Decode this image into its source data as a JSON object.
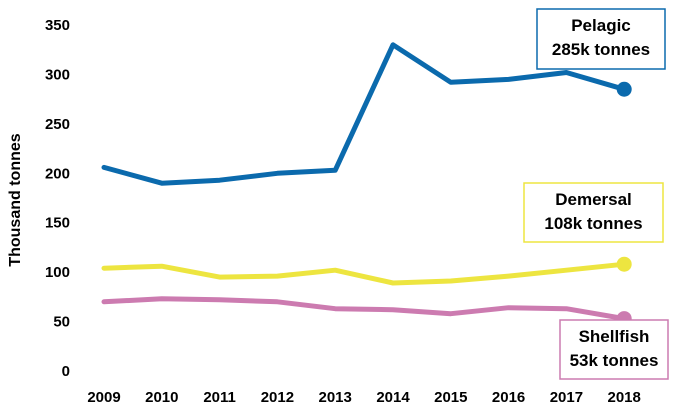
{
  "chart_data": {
    "type": "line",
    "title": "",
    "xlabel": "",
    "ylabel": "Thousand tonnes",
    "ylim": [
      0,
      350
    ],
    "yticks": [
      0,
      50,
      100,
      150,
      200,
      250,
      300,
      350
    ],
    "grid": false,
    "categories": [
      "2009",
      "2010",
      "2011",
      "2012",
      "2013",
      "2014",
      "2015",
      "2016",
      "2017",
      "2018"
    ],
    "series": [
      {
        "name": "Pelagic",
        "color": "#0b6aad",
        "values": [
          206,
          190,
          193,
          200,
          203,
          330,
          292,
          295,
          302,
          285
        ],
        "annotation": [
          "Pelagic",
          "285k tonnes"
        ]
      },
      {
        "name": "Demersal",
        "color": "#ede540",
        "values": [
          104,
          106,
          95,
          96,
          102,
          89,
          91,
          96,
          102,
          108
        ],
        "annotation": [
          "Demersal",
          "108k tonnes"
        ]
      },
      {
        "name": "Shellfish",
        "color": "#cc7bb0",
        "values": [
          70,
          73,
          72,
          70,
          63,
          62,
          58,
          64,
          63,
          53
        ],
        "annotation": [
          "Shellfish",
          "53k tonnes"
        ]
      }
    ]
  }
}
